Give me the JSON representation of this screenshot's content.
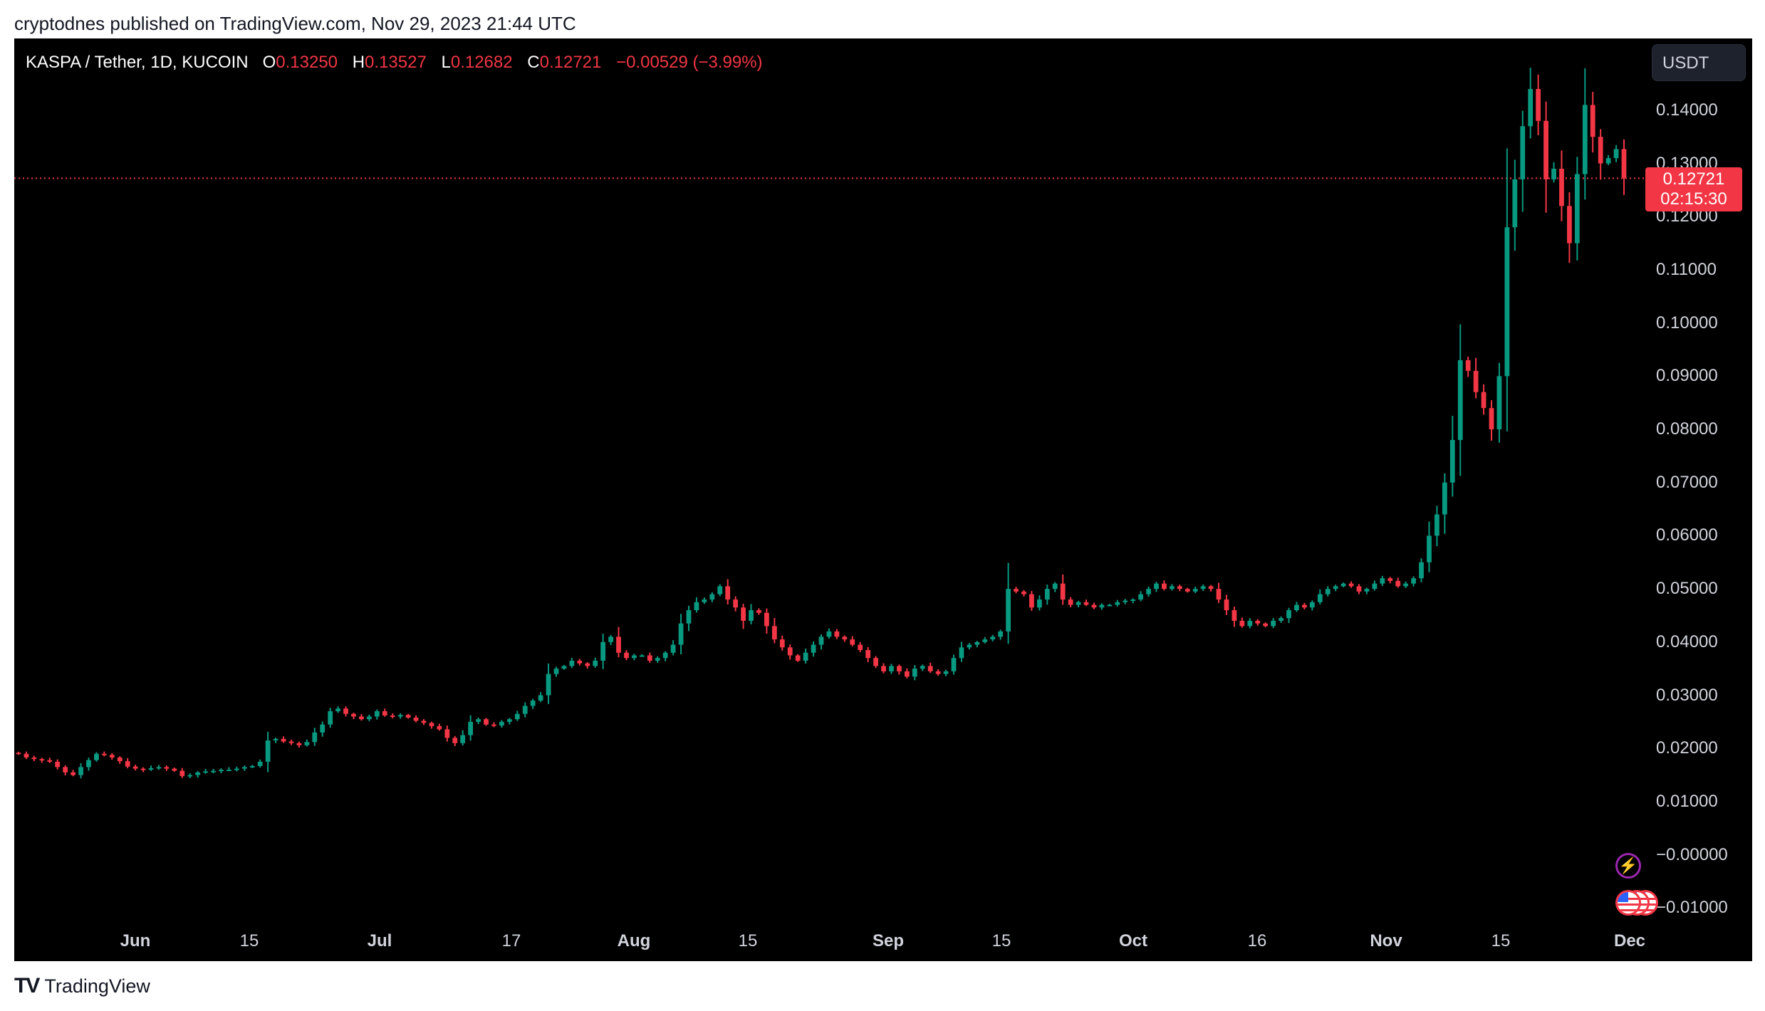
{
  "publisher_line": "cryptodnes published on TradingView.com, Nov 29, 2023 21:44 UTC",
  "legend": {
    "symbol": "KASPA / Tether, 1D, KUCOIN",
    "o_label": "O",
    "o_value": "0.13250",
    "h_label": "H",
    "h_value": "0.13527",
    "l_label": "L",
    "l_value": "0.12682",
    "c_label": "C",
    "c_value": "0.12721",
    "change": "−0.00529 (−3.99%)"
  },
  "currency_button": "USDT",
  "price_tag": {
    "price": "0.12721",
    "countdown": "02:15:30"
  },
  "footer_brand": "TradingView",
  "icons": {
    "event": "lightning-icon",
    "economic": "us-flag-icon"
  },
  "colors": {
    "up": "#089981",
    "down": "#f23645",
    "background": "#000000",
    "axis_text": "#d1d4dc"
  },
  "chart_data": {
    "type": "candlestick",
    "symbol": "KASPA / Tether",
    "interval": "1D",
    "exchange": "KUCOIN",
    "x_tick_labels": [
      "Jun",
      "15",
      "Jul",
      "17",
      "Aug",
      "15",
      "Sep",
      "15",
      "Oct",
      "16",
      "Nov",
      "15",
      "Dec"
    ],
    "y_ticks": [
      0.14,
      0.13,
      0.12,
      0.11,
      0.1,
      0.09,
      0.08,
      0.07,
      0.06,
      0.05,
      0.04,
      0.03,
      0.02,
      0.01,
      0.0,
      -0.01
    ],
    "y_tick_labels": [
      "0.14000",
      "0.13000",
      "0.12000",
      "0.11000",
      "0.10000",
      "0.09000",
      "0.08000",
      "0.07000",
      "0.06000",
      "0.05000",
      "0.04000",
      "0.03000",
      "0.02000",
      "0.01000",
      "−0.00000",
      "−0.01000"
    ],
    "ylim": [
      -0.0125,
      0.1535
    ],
    "last_price": 0.12721,
    "grid": false,
    "close_series": [
      0.019,
      0.0183,
      0.018,
      0.0178,
      0.0175,
      0.0165,
      0.0155,
      0.015,
      0.0165,
      0.0178,
      0.019,
      0.0188,
      0.0183,
      0.0176,
      0.0166,
      0.0162,
      0.016,
      0.0163,
      0.0165,
      0.0162,
      0.0158,
      0.0148,
      0.015,
      0.0155,
      0.0157,
      0.0158,
      0.016,
      0.016,
      0.0162,
      0.0165,
      0.0167,
      0.0175,
      0.0215,
      0.0218,
      0.0213,
      0.021,
      0.0206,
      0.0212,
      0.023,
      0.0245,
      0.027,
      0.0275,
      0.0265,
      0.026,
      0.0255,
      0.026,
      0.027,
      0.0262,
      0.026,
      0.0263,
      0.0258,
      0.0252,
      0.0248,
      0.0242,
      0.0236,
      0.022,
      0.021,
      0.0225,
      0.025,
      0.0255,
      0.0245,
      0.0243,
      0.025,
      0.0255,
      0.0265,
      0.028,
      0.029,
      0.03,
      0.034,
      0.035,
      0.0355,
      0.0365,
      0.036,
      0.0355,
      0.0365,
      0.04,
      0.041,
      0.038,
      0.037,
      0.0375,
      0.0375,
      0.0365,
      0.037,
      0.038,
      0.0395,
      0.0435,
      0.046,
      0.0475,
      0.048,
      0.049,
      0.0505,
      0.048,
      0.0465,
      0.044,
      0.046,
      0.0455,
      0.043,
      0.0405,
      0.039,
      0.0375,
      0.0365,
      0.038,
      0.0395,
      0.041,
      0.042,
      0.041,
      0.0405,
      0.0395,
      0.0385,
      0.037,
      0.0355,
      0.0345,
      0.0355,
      0.0345,
      0.0335,
      0.035,
      0.0355,
      0.0345,
      0.034,
      0.0345,
      0.037,
      0.039,
      0.0395,
      0.04,
      0.0405,
      0.041,
      0.042,
      0.05,
      0.0495,
      0.049,
      0.0465,
      0.048,
      0.05,
      0.051,
      0.048,
      0.047,
      0.0475,
      0.047,
      0.0465,
      0.047,
      0.047,
      0.0475,
      0.0478,
      0.048,
      0.049,
      0.05,
      0.051,
      0.05,
      0.0505,
      0.05,
      0.0495,
      0.05,
      0.0505,
      0.05,
      0.048,
      0.046,
      0.044,
      0.043,
      0.044,
      0.0435,
      0.043,
      0.044,
      0.0445,
      0.046,
      0.047,
      0.0465,
      0.0475,
      0.049,
      0.05,
      0.0505,
      0.051,
      0.0505,
      0.0495,
      0.05,
      0.051,
      0.052,
      0.0515,
      0.0505,
      0.051,
      0.052,
      0.055,
      0.06,
      0.064,
      0.07,
      0.078,
      0.093,
      0.091,
      0.087,
      0.084,
      0.08,
      0.09,
      0.118,
      0.127,
      0.137,
      0.144,
      0.138,
      0.127,
      0.129,
      0.122,
      0.115,
      0.128,
      0.141,
      0.135,
      0.13,
      0.131,
      0.1327,
      0.1272
    ]
  }
}
